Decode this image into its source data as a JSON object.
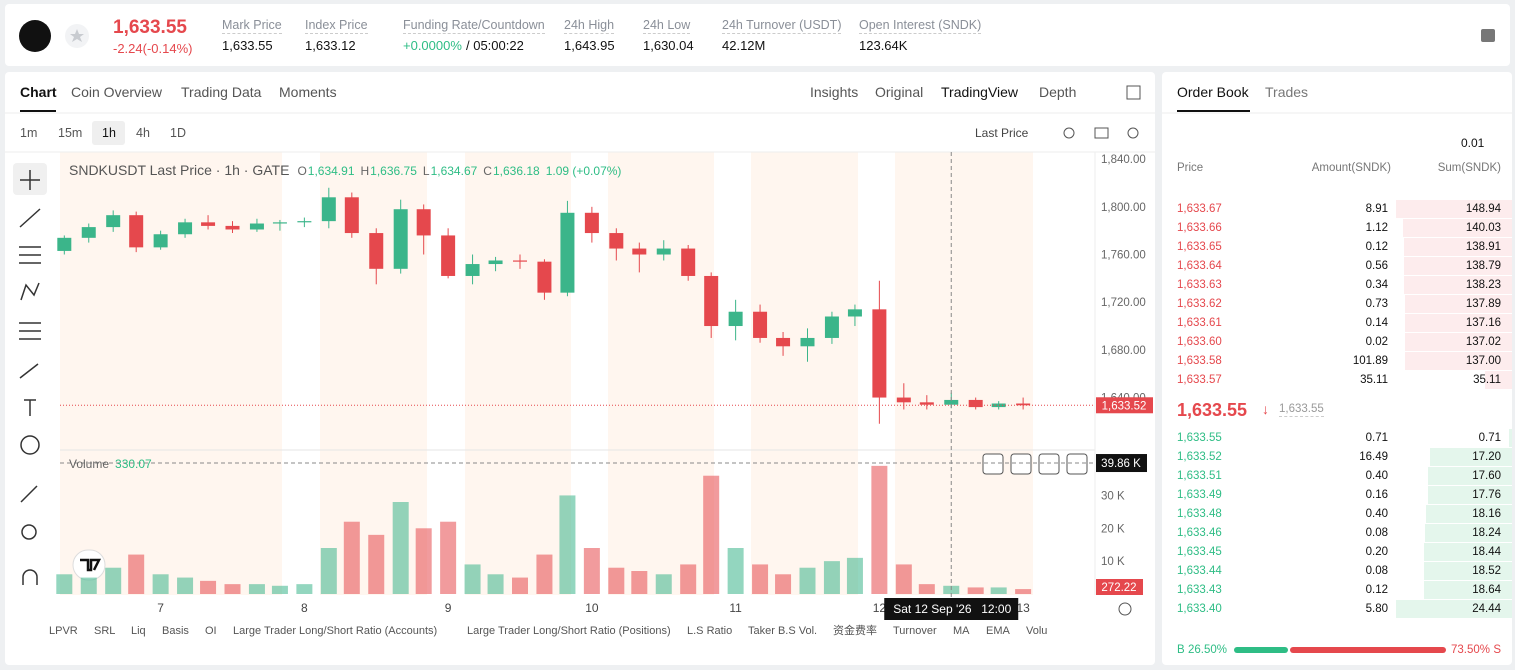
{
  "header": {
    "price": "1,633.55",
    "change": "-2.24(-0.14%)",
    "stats": [
      {
        "label": "Mark Price",
        "value": "1,633.55"
      },
      {
        "label": "Index Price",
        "value": "1,633.12"
      },
      {
        "label": "Funding Rate/Countdown",
        "value": "+0.0000%",
        "countdown": "/ 05:00:22"
      },
      {
        "label": "24h High",
        "value": "1,643.95"
      },
      {
        "label": "24h Low",
        "value": "1,630.04"
      },
      {
        "label": "24h Turnover (USDT)",
        "value": "42.12M"
      },
      {
        "label": "Open Interest (SNDK)",
        "value": "123.64K"
      }
    ]
  },
  "chart_tabs": [
    "Chart",
    "Coin Overview",
    "Trading Data",
    "Moments"
  ],
  "view_tabs": [
    "Insights",
    "Original",
    "TradingView",
    "Depth"
  ],
  "intervals": [
    "1m",
    "15m",
    "1h",
    "4h",
    "1D"
  ],
  "price_source": "Last Price",
  "chart": {
    "type": "candlestick",
    "legend": "SNDKUSDT Last Price · 1h · GATE",
    "ohlc": [
      {
        "key": "O",
        "value": "1,634.91"
      },
      {
        "key": "H",
        "value": "1,636.75"
      },
      {
        "key": "L",
        "value": "1,634.67"
      },
      {
        "key": "C",
        "value": "1,636.18"
      }
    ],
    "change": "1.09 (+0.07%)",
    "xlim": [
      6.3,
      13.5
    ],
    "xticks": [
      7,
      8,
      9,
      10,
      11,
      12,
      13
    ],
    "ylim": [
      1596,
      1846
    ],
    "yticks": [
      {
        "value": 1640,
        "label": "1,640.00"
      },
      {
        "value": 1680,
        "label": "1,680.00"
      },
      {
        "value": 1720,
        "label": "1,720.00"
      },
      {
        "value": 1760,
        "label": "1,760.00"
      },
      {
        "value": 1800,
        "label": "1,800.00"
      },
      {
        "value": 1840,
        "label": "1,840.00"
      }
    ],
    "vol_ylim": [
      0,
      42000
    ],
    "vol_yticks": [
      {
        "value": 10000,
        "label": "10 K"
      },
      {
        "value": 20000,
        "label": "20 K"
      },
      {
        "value": 30000,
        "label": "30 K"
      }
    ],
    "up_color": "#3bb58a",
    "down_color": "#e5484d",
    "x": [
      6.33,
      6.5,
      6.67,
      6.83,
      7,
      7.17,
      7.33,
      7.5,
      7.67,
      7.83,
      8,
      8.17,
      8.33,
      8.5,
      8.67,
      8.83,
      9,
      9.17,
      9.33,
      9.5,
      9.67,
      9.83,
      10,
      10.17,
      10.33,
      10.5,
      10.67,
      10.83,
      11,
      11.17,
      11.33,
      11.5,
      11.67,
      11.83,
      12,
      12.17,
      12.33,
      12.5,
      12.67,
      12.83,
      13
    ],
    "open": [
      1763,
      1774,
      1783,
      1793,
      1766,
      1777,
      1787,
      1784,
      1781,
      1786,
      1787,
      1788,
      1808,
      1778,
      1748,
      1798,
      1776,
      1742,
      1752,
      1755,
      1754,
      1728,
      1795,
      1778,
      1765,
      1760,
      1765,
      1742,
      1700,
      1712,
      1690,
      1683,
      1690,
      1708,
      1714,
      1640,
      1636,
      1634,
      1638,
      1632,
      1635
    ],
    "high": [
      1776,
      1786,
      1797,
      1796,
      1780,
      1790,
      1793,
      1788,
      1790,
      1789,
      1791,
      1816,
      1812,
      1782,
      1806,
      1802,
      1782,
      1760,
      1758,
      1760,
      1756,
      1805,
      1800,
      1782,
      1770,
      1772,
      1768,
      1745,
      1722,
      1718,
      1695,
      1698,
      1712,
      1718,
      1738,
      1652,
      1642,
      1644,
      1640,
      1637,
      1640
    ],
    "low": [
      1760,
      1770,
      1779,
      1762,
      1764,
      1774,
      1781,
      1778,
      1779,
      1780,
      1783,
      1782,
      1774,
      1735,
      1744,
      1760,
      1740,
      1735,
      1746,
      1748,
      1722,
      1725,
      1770,
      1755,
      1745,
      1755,
      1738,
      1690,
      1688,
      1686,
      1675,
      1670,
      1685,
      1700,
      1618,
      1630,
      1630,
      1631,
      1630,
      1630,
      1630
    ],
    "close": [
      1774,
      1783,
      1793,
      1766,
      1777,
      1787,
      1784,
      1781,
      1786,
      1787,
      1788,
      1808,
      1778,
      1748,
      1798,
      1776,
      1742,
      1752,
      1755,
      1754,
      1728,
      1795,
      1778,
      1765,
      1760,
      1765,
      1742,
      1700,
      1712,
      1690,
      1683,
      1690,
      1708,
      1714,
      1640,
      1636,
      1634,
      1638,
      1632,
      1635,
      1633.52
    ],
    "volume": [
      6000,
      5000,
      8000,
      12000,
      6000,
      5000,
      4000,
      3000,
      3000,
      2500,
      3000,
      14000,
      22000,
      18000,
      28000,
      20000,
      22000,
      9000,
      6000,
      5000,
      12000,
      30000,
      14000,
      8000,
      7000,
      6000,
      9000,
      36000,
      14000,
      9000,
      6000,
      8000,
      10000,
      11000,
      39000,
      9000,
      3000,
      2500,
      2000,
      2000,
      1500
    ],
    "last_price": {
      "value": 1633.52,
      "label": "1,633.52"
    },
    "volume_title": "Volume",
    "volume_value": "330.07",
    "crosshair_volume": {
      "value": 39860,
      "label": "39.86 K"
    },
    "last_volume": {
      "value": 272.22,
      "label": "272.22"
    },
    "crosshair": {
      "x": 12.5,
      "date": "Sat 12 Sep '26",
      "time": "12:00"
    }
  },
  "indicators": [
    "LPVR",
    "SRL",
    "Liq",
    "Basis",
    "OI",
    "Large Trader Long/Short Ratio (Accounts)",
    "Large Trader Long/Short Ratio (Positions)",
    "L.S Ratio",
    "Taker B.S Vol.",
    "资金费率",
    "Turnover",
    "MA",
    "EMA",
    "Volu"
  ],
  "order_book": {
    "tabs": [
      "Order Book",
      "Trades"
    ],
    "precision": "0.01",
    "columns": [
      "Price",
      "Amount(SNDK)",
      "Sum(SNDK)"
    ],
    "asks": [
      [
        "1,633.67",
        "8.91",
        "148.94"
      ],
      [
        "1,633.66",
        "1.12",
        "140.03"
      ],
      [
        "1,633.65",
        "0.12",
        "138.91"
      ],
      [
        "1,633.64",
        "0.56",
        "138.79"
      ],
      [
        "1,633.63",
        "0.34",
        "138.23"
      ],
      [
        "1,633.62",
        "0.73",
        "137.89"
      ],
      [
        "1,633.61",
        "0.14",
        "137.16"
      ],
      [
        "1,633.60",
        "0.02",
        "137.02"
      ],
      [
        "1,633.58",
        "101.89",
        "137.00"
      ],
      [
        "1,633.57",
        "35.11",
        "35.11"
      ]
    ],
    "mid_price": "1,633.55",
    "mark_price": "1,633.55",
    "bids": [
      [
        "1,633.55",
        "0.71",
        "0.71"
      ],
      [
        "1,633.52",
        "16.49",
        "17.20"
      ],
      [
        "1,633.51",
        "0.40",
        "17.60"
      ],
      [
        "1,633.49",
        "0.16",
        "17.76"
      ],
      [
        "1,633.48",
        "0.40",
        "18.16"
      ],
      [
        "1,633.46",
        "0.08",
        "18.24"
      ],
      [
        "1,633.45",
        "0.20",
        "18.44"
      ],
      [
        "1,633.44",
        "0.08",
        "18.52"
      ],
      [
        "1,633.43",
        "0.12",
        "18.64"
      ],
      [
        "1,633.40",
        "5.80",
        "24.44"
      ]
    ],
    "buy_letter": "B",
    "buy": "26.50%",
    "sell": "73.50%",
    "sell_letter": "S"
  }
}
